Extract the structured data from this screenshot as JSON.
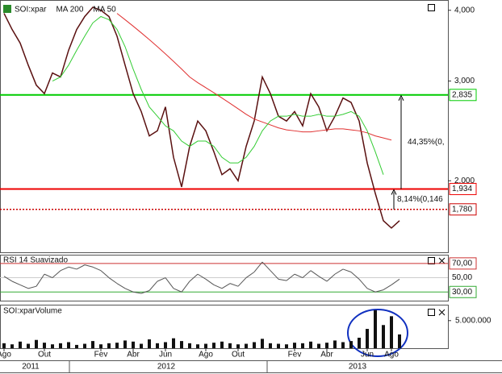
{
  "chart_data": {
    "type": "line",
    "log_scale": true,
    "categories": [
      "Ago",
      null,
      null,
      null,
      null,
      "Out",
      null,
      null,
      null,
      null,
      null,
      null,
      "Fev",
      null,
      null,
      null,
      "Abr",
      null,
      null,
      null,
      "Jun",
      null,
      null,
      null,
      null,
      "Ago",
      null,
      null,
      null,
      "Out",
      null,
      null,
      null,
      null,
      null,
      null,
      "Fev",
      null,
      null,
      null,
      "Abr",
      null,
      null,
      null,
      null,
      "Jun",
      null,
      null,
      "Ago",
      null
    ],
    "year_labels": [
      "2011",
      "2012",
      "2013"
    ],
    "series": [
      {
        "name": "SOI:xpar",
        "color": "#5a1010",
        "values": [
          3950,
          3700,
          3500,
          3200,
          2950,
          2850,
          3100,
          3050,
          3400,
          3700,
          3900,
          4050,
          4000,
          3900,
          3600,
          3200,
          2850,
          2650,
          2400,
          2450,
          2700,
          2200,
          1950,
          2300,
          2550,
          2450,
          2250,
          2050,
          2100,
          2000,
          2300,
          2550,
          3050,
          2850,
          2600,
          2550,
          2650,
          2500,
          2850,
          2700,
          2450,
          2600,
          2800,
          2750,
          2550,
          2150,
          1900,
          1700,
          1650,
          1700
        ]
      },
      {
        "name": "MA 200",
        "color": "#e03030",
        "values": [
          null,
          null,
          null,
          null,
          null,
          null,
          null,
          null,
          null,
          null,
          null,
          null,
          null,
          null,
          3950,
          3850,
          3750,
          3650,
          3550,
          3450,
          3350,
          3250,
          3150,
          3050,
          2980,
          2920,
          2860,
          2800,
          2740,
          2680,
          2620,
          2570,
          2540,
          2510,
          2480,
          2460,
          2450,
          2440,
          2440,
          2450,
          2460,
          2470,
          2470,
          2460,
          2450,
          2430,
          2400,
          2380,
          2360,
          null
        ]
      },
      {
        "name": "MA 50",
        "color": "#33cc33",
        "values": [
          null,
          null,
          null,
          null,
          null,
          null,
          3000,
          3050,
          3200,
          3400,
          3600,
          3800,
          3900,
          3850,
          3700,
          3450,
          3150,
          2900,
          2700,
          2600,
          2500,
          2450,
          2350,
          2300,
          2350,
          2350,
          2300,
          2200,
          2150,
          2150,
          2200,
          2300,
          2450,
          2550,
          2600,
          2600,
          2620,
          2600,
          2600,
          2620,
          2600,
          2600,
          2620,
          2650,
          2600,
          2450,
          2250,
          2050,
          null,
          null
        ]
      }
    ],
    "ylim": [
      1500,
      4130
    ],
    "yticks": [
      {
        "value": 4000,
        "label": "4,000"
      },
      {
        "value": 3000,
        "label": "3,000"
      },
      {
        "value": 2000,
        "label": "2,000"
      }
    ],
    "levels": [
      {
        "value": 2835,
        "label": "2,835",
        "color": "#00cc00",
        "style": "solid"
      },
      {
        "value": 1934,
        "label": "1,934",
        "color": "#ee0000",
        "style": "solid"
      },
      {
        "value": 1780,
        "label": "1,780",
        "color": "#cc0000",
        "style": "dotted"
      }
    ],
    "annotations": [
      "44,35%(0,",
      "8,14%(0,146"
    ],
    "rsi": {
      "title": "RSI 14 Suavizado",
      "color": "#555555",
      "ylim": [
        19,
        80
      ],
      "yticks": [
        {
          "value": 70,
          "label": "70,00",
          "color": "#cc3333"
        },
        {
          "value": 50,
          "label": "50,00",
          "color": "#cccccc"
        },
        {
          "value": 30,
          "label": "30,00",
          "color": "#33aa33"
        }
      ],
      "values": [
        52,
        45,
        40,
        35,
        38,
        55,
        50,
        60,
        65,
        62,
        68,
        65,
        60,
        50,
        42,
        35,
        30,
        28,
        32,
        45,
        50,
        35,
        30,
        45,
        55,
        48,
        40,
        35,
        42,
        38,
        50,
        58,
        72,
        60,
        48,
        46,
        55,
        50,
        60,
        52,
        45,
        55,
        62,
        58,
        48,
        35,
        30,
        33,
        40,
        48
      ]
    },
    "volume": {
      "title": "SOI:xparVolume",
      "color": "#111111",
      "ylim": [
        0,
        7600000
      ],
      "yticks": [
        {
          "value": 5000000,
          "label": "5.000.000"
        }
      ],
      "values": [
        900000,
        700000,
        1200000,
        800000,
        1500000,
        1000000,
        700000,
        900000,
        1100000,
        600000,
        800000,
        1300000,
        700000,
        900000,
        1000000,
        1400000,
        1200000,
        800000,
        1600000,
        900000,
        1100000,
        1800000,
        1300000,
        900000,
        700000,
        800000,
        1000000,
        1200000,
        900000,
        700000,
        800000,
        1100000,
        1700000,
        900000,
        800000,
        700000,
        1000000,
        900000,
        1200000,
        800000,
        1000000,
        1400000,
        1100000,
        1300000,
        1900000,
        3500000,
        6900000,
        4200000,
        5800000,
        2500000
      ]
    }
  }
}
